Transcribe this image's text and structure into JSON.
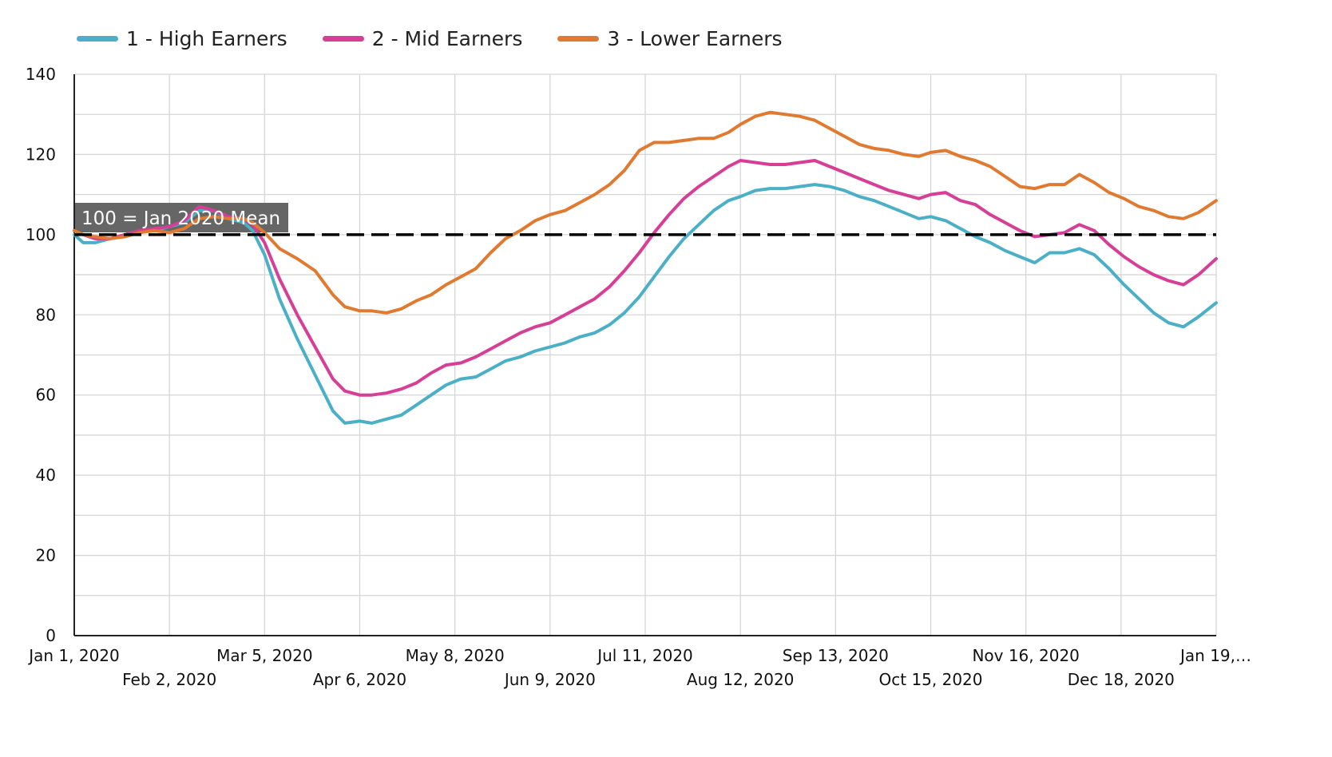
{
  "chart_data": {
    "type": "line",
    "ylim": [
      0,
      140
    ],
    "yticks": [
      0,
      20,
      40,
      60,
      80,
      100,
      120,
      140
    ],
    "ytick_labels": [
      "0",
      "20",
      "40",
      "60",
      "80",
      "100",
      "120",
      "140"
    ],
    "xlim": [
      "2020-01-01",
      "2021-01-19"
    ],
    "xtick_labels": [
      {
        "date": "2020-01-01",
        "label": "Jan 1, 2020"
      },
      {
        "date": "2020-02-02",
        "label": "Feb 2, 2020"
      },
      {
        "date": "2020-03-05",
        "label": "Mar 5, 2020"
      },
      {
        "date": "2020-04-06",
        "label": "Apr 6, 2020"
      },
      {
        "date": "2020-05-08",
        "label": "May 8, 2020"
      },
      {
        "date": "2020-06-09",
        "label": "Jun 9, 2020"
      },
      {
        "date": "2020-07-11",
        "label": "Jul 11, 2020"
      },
      {
        "date": "2020-08-12",
        "label": "Aug 12, 2020"
      },
      {
        "date": "2020-09-13",
        "label": "Sep 13, 2020"
      },
      {
        "date": "2020-10-15",
        "label": "Oct 15, 2020"
      },
      {
        "date": "2020-11-16",
        "label": "Nov 16, 2020"
      },
      {
        "date": "2020-12-18",
        "label": "Dec 18, 2020"
      },
      {
        "date": "2021-01-19",
        "label": "Jan 19,…"
      }
    ],
    "grid": true,
    "legend_position": "top-left",
    "reference_line": {
      "y": 100,
      "label": "100 = Jan 2020 Mean",
      "color": "#000000",
      "style": "dashed"
    },
    "series": [
      {
        "name": "1 - High Earners",
        "color": "#4bb0c6",
        "points": [
          [
            "2020-01-01",
            100
          ],
          [
            "2020-01-04",
            98
          ],
          [
            "2020-01-08",
            98
          ],
          [
            "2020-01-13",
            99
          ],
          [
            "2020-01-18",
            100
          ],
          [
            "2020-01-23",
            101
          ],
          [
            "2020-01-28",
            101
          ],
          [
            "2020-02-02",
            102
          ],
          [
            "2020-02-07",
            103
          ],
          [
            "2020-02-12",
            106
          ],
          [
            "2020-02-17",
            106
          ],
          [
            "2020-02-22",
            104
          ],
          [
            "2020-02-27",
            103
          ],
          [
            "2020-03-01",
            101
          ],
          [
            "2020-03-05",
            95
          ],
          [
            "2020-03-10",
            84
          ],
          [
            "2020-03-16",
            74
          ],
          [
            "2020-03-22",
            65
          ],
          [
            "2020-03-28",
            56
          ],
          [
            "2020-04-01",
            53
          ],
          [
            "2020-04-06",
            53.5
          ],
          [
            "2020-04-10",
            53
          ],
          [
            "2020-04-15",
            54
          ],
          [
            "2020-04-20",
            55
          ],
          [
            "2020-04-25",
            57.5
          ],
          [
            "2020-04-30",
            60
          ],
          [
            "2020-05-05",
            62.5
          ],
          [
            "2020-05-10",
            64
          ],
          [
            "2020-05-15",
            64.5
          ],
          [
            "2020-05-20",
            66.5
          ],
          [
            "2020-05-25",
            68.5
          ],
          [
            "2020-05-30",
            69.5
          ],
          [
            "2020-06-04",
            71
          ],
          [
            "2020-06-09",
            72
          ],
          [
            "2020-06-14",
            73
          ],
          [
            "2020-06-19",
            74.5
          ],
          [
            "2020-06-24",
            75.5
          ],
          [
            "2020-06-29",
            77.5
          ],
          [
            "2020-07-04",
            80.5
          ],
          [
            "2020-07-09",
            84.5
          ],
          [
            "2020-07-14",
            89.5
          ],
          [
            "2020-07-19",
            94.5
          ],
          [
            "2020-07-24",
            99
          ],
          [
            "2020-07-29",
            102.5
          ],
          [
            "2020-08-03",
            106
          ],
          [
            "2020-08-08",
            108.5
          ],
          [
            "2020-08-12",
            109.5
          ],
          [
            "2020-08-17",
            111
          ],
          [
            "2020-08-22",
            111.5
          ],
          [
            "2020-08-27",
            111.5
          ],
          [
            "2020-09-01",
            112
          ],
          [
            "2020-09-06",
            112.5
          ],
          [
            "2020-09-11",
            112
          ],
          [
            "2020-09-16",
            111
          ],
          [
            "2020-09-21",
            109.5
          ],
          [
            "2020-09-26",
            108.5
          ],
          [
            "2020-10-01",
            107
          ],
          [
            "2020-10-06",
            105.5
          ],
          [
            "2020-10-11",
            104
          ],
          [
            "2020-10-15",
            104.5
          ],
          [
            "2020-10-20",
            103.5
          ],
          [
            "2020-10-25",
            101.5
          ],
          [
            "2020-10-30",
            99.5
          ],
          [
            "2020-11-04",
            98
          ],
          [
            "2020-11-09",
            96
          ],
          [
            "2020-11-14",
            94.5
          ],
          [
            "2020-11-19",
            93
          ],
          [
            "2020-11-24",
            95.5
          ],
          [
            "2020-11-29",
            95.5
          ],
          [
            "2020-12-04",
            96.5
          ],
          [
            "2020-12-09",
            95
          ],
          [
            "2020-12-14",
            91.5
          ],
          [
            "2020-12-19",
            87.5
          ],
          [
            "2020-12-24",
            84
          ],
          [
            "2020-12-29",
            80.5
          ],
          [
            "2021-01-03",
            78
          ],
          [
            "2021-01-08",
            77
          ],
          [
            "2021-01-13",
            79.5
          ],
          [
            "2021-01-19",
            83
          ]
        ]
      },
      {
        "name": "2 - Mid Earners",
        "color": "#d63f96",
        "points": [
          [
            "2020-01-01",
            101
          ],
          [
            "2020-01-04",
            100
          ],
          [
            "2020-01-08",
            99
          ],
          [
            "2020-01-13",
            99
          ],
          [
            "2020-01-18",
            100
          ],
          [
            "2020-01-23",
            101
          ],
          [
            "2020-01-28",
            101.5
          ],
          [
            "2020-02-02",
            102
          ],
          [
            "2020-02-07",
            103.5
          ],
          [
            "2020-02-12",
            107
          ],
          [
            "2020-02-17",
            106
          ],
          [
            "2020-02-22",
            104.5
          ],
          [
            "2020-02-27",
            104
          ],
          [
            "2020-03-01",
            102.5
          ],
          [
            "2020-03-05",
            98
          ],
          [
            "2020-03-10",
            89
          ],
          [
            "2020-03-16",
            80
          ],
          [
            "2020-03-22",
            72
          ],
          [
            "2020-03-28",
            64
          ],
          [
            "2020-04-01",
            61
          ],
          [
            "2020-04-06",
            60
          ],
          [
            "2020-04-10",
            60
          ],
          [
            "2020-04-15",
            60.5
          ],
          [
            "2020-04-20",
            61.5
          ],
          [
            "2020-04-25",
            63
          ],
          [
            "2020-04-30",
            65.5
          ],
          [
            "2020-05-05",
            67.5
          ],
          [
            "2020-05-10",
            68
          ],
          [
            "2020-05-15",
            69.5
          ],
          [
            "2020-05-20",
            71.5
          ],
          [
            "2020-05-25",
            73.5
          ],
          [
            "2020-05-30",
            75.5
          ],
          [
            "2020-06-04",
            77
          ],
          [
            "2020-06-09",
            78
          ],
          [
            "2020-06-14",
            80
          ],
          [
            "2020-06-19",
            82
          ],
          [
            "2020-06-24",
            84
          ],
          [
            "2020-06-29",
            87
          ],
          [
            "2020-07-04",
            91
          ],
          [
            "2020-07-09",
            95.5
          ],
          [
            "2020-07-14",
            100.5
          ],
          [
            "2020-07-19",
            105
          ],
          [
            "2020-07-24",
            109
          ],
          [
            "2020-07-29",
            112
          ],
          [
            "2020-08-03",
            114.5
          ],
          [
            "2020-08-08",
            117
          ],
          [
            "2020-08-12",
            118.5
          ],
          [
            "2020-08-17",
            118
          ],
          [
            "2020-08-22",
            117.5
          ],
          [
            "2020-08-27",
            117.5
          ],
          [
            "2020-09-01",
            118
          ],
          [
            "2020-09-06",
            118.5
          ],
          [
            "2020-09-11",
            117
          ],
          [
            "2020-09-16",
            115.5
          ],
          [
            "2020-09-21",
            114
          ],
          [
            "2020-09-26",
            112.5
          ],
          [
            "2020-10-01",
            111
          ],
          [
            "2020-10-06",
            110
          ],
          [
            "2020-10-11",
            109
          ],
          [
            "2020-10-15",
            110
          ],
          [
            "2020-10-20",
            110.5
          ],
          [
            "2020-10-25",
            108.5
          ],
          [
            "2020-10-30",
            107.5
          ],
          [
            "2020-11-04",
            105
          ],
          [
            "2020-11-09",
            103
          ],
          [
            "2020-11-14",
            101
          ],
          [
            "2020-11-19",
            99.5
          ],
          [
            "2020-11-24",
            100
          ],
          [
            "2020-11-29",
            100.5
          ],
          [
            "2020-12-04",
            102.5
          ],
          [
            "2020-12-09",
            101
          ],
          [
            "2020-12-14",
            97.5
          ],
          [
            "2020-12-19",
            94.5
          ],
          [
            "2020-12-24",
            92
          ],
          [
            "2020-12-29",
            90
          ],
          [
            "2021-01-03",
            88.5
          ],
          [
            "2021-01-08",
            87.5
          ],
          [
            "2021-01-13",
            90
          ],
          [
            "2021-01-19",
            94
          ]
        ]
      },
      {
        "name": "3 - Lower Earners",
        "color": "#e07a30",
        "points": [
          [
            "2020-01-01",
            101
          ],
          [
            "2020-01-04",
            100
          ],
          [
            "2020-01-08",
            99.5
          ],
          [
            "2020-01-13",
            99
          ],
          [
            "2020-01-18",
            99.5
          ],
          [
            "2020-01-23",
            100.5
          ],
          [
            "2020-01-28",
            101
          ],
          [
            "2020-02-02",
            100.5
          ],
          [
            "2020-02-07",
            101.5
          ],
          [
            "2020-02-12",
            104
          ],
          [
            "2020-02-17",
            104.5
          ],
          [
            "2020-02-22",
            104
          ],
          [
            "2020-02-27",
            104
          ],
          [
            "2020-03-01",
            103
          ],
          [
            "2020-03-05",
            100.5
          ],
          [
            "2020-03-10",
            96.5
          ],
          [
            "2020-03-16",
            94
          ],
          [
            "2020-03-22",
            91
          ],
          [
            "2020-03-28",
            85
          ],
          [
            "2020-04-01",
            82
          ],
          [
            "2020-04-06",
            81
          ],
          [
            "2020-04-10",
            81
          ],
          [
            "2020-04-15",
            80.5
          ],
          [
            "2020-04-20",
            81.5
          ],
          [
            "2020-04-25",
            83.5
          ],
          [
            "2020-04-30",
            85
          ],
          [
            "2020-05-05",
            87.5
          ],
          [
            "2020-05-10",
            89.5
          ],
          [
            "2020-05-15",
            91.5
          ],
          [
            "2020-05-20",
            95.5
          ],
          [
            "2020-05-25",
            99
          ],
          [
            "2020-05-30",
            101
          ],
          [
            "2020-06-04",
            103.5
          ],
          [
            "2020-06-09",
            105
          ],
          [
            "2020-06-14",
            106
          ],
          [
            "2020-06-19",
            108
          ],
          [
            "2020-06-24",
            110
          ],
          [
            "2020-06-29",
            112.5
          ],
          [
            "2020-07-04",
            116
          ],
          [
            "2020-07-09",
            121
          ],
          [
            "2020-07-14",
            123
          ],
          [
            "2020-07-19",
            123
          ],
          [
            "2020-07-24",
            123.5
          ],
          [
            "2020-07-29",
            124
          ],
          [
            "2020-08-03",
            124
          ],
          [
            "2020-08-08",
            125.5
          ],
          [
            "2020-08-12",
            127.5
          ],
          [
            "2020-08-17",
            129.5
          ],
          [
            "2020-08-22",
            130.5
          ],
          [
            "2020-08-27",
            130
          ],
          [
            "2020-09-01",
            129.5
          ],
          [
            "2020-09-06",
            128.5
          ],
          [
            "2020-09-11",
            126.5
          ],
          [
            "2020-09-16",
            124.5
          ],
          [
            "2020-09-21",
            122.5
          ],
          [
            "2020-09-26",
            121.5
          ],
          [
            "2020-10-01",
            121
          ],
          [
            "2020-10-06",
            120
          ],
          [
            "2020-10-11",
            119.5
          ],
          [
            "2020-10-15",
            120.5
          ],
          [
            "2020-10-20",
            121
          ],
          [
            "2020-10-25",
            119.5
          ],
          [
            "2020-10-30",
            118.5
          ],
          [
            "2020-11-04",
            117
          ],
          [
            "2020-11-09",
            114.5
          ],
          [
            "2020-11-14",
            112
          ],
          [
            "2020-11-19",
            111.5
          ],
          [
            "2020-11-24",
            112.5
          ],
          [
            "2020-11-29",
            112.5
          ],
          [
            "2020-12-04",
            115
          ],
          [
            "2020-12-09",
            113
          ],
          [
            "2020-12-14",
            110.5
          ],
          [
            "2020-12-19",
            109
          ],
          [
            "2020-12-24",
            107
          ],
          [
            "2020-12-29",
            106
          ],
          [
            "2021-01-03",
            104.5
          ],
          [
            "2021-01-08",
            104
          ],
          [
            "2021-01-13",
            105.5
          ],
          [
            "2021-01-19",
            108.5
          ]
        ]
      }
    ]
  }
}
